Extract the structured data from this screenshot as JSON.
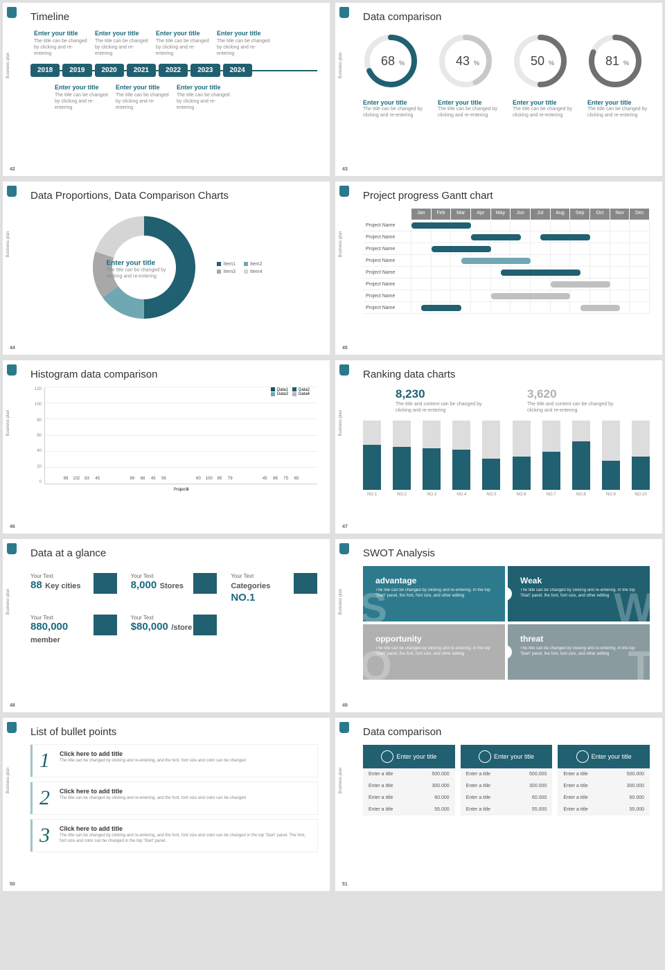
{
  "vlabel": "Business plan",
  "colors": {
    "primary": "#206070",
    "light": "#6fa8b3",
    "gray": "#a8a8a8",
    "lightgray": "#d5d5d5",
    "dark": "#2d5560"
  },
  "s42": {
    "num": "42",
    "title": "Timeline",
    "years": [
      "2018",
      "2019",
      "2020",
      "2021",
      "2022",
      "2023",
      "2024"
    ],
    "top": [
      {
        "t": "Enter your title",
        "d": "The title can be changed by clicking and re-entering"
      },
      {
        "t": "Enter your title",
        "d": "The title can be changed by clicking and re-entering"
      },
      {
        "t": "Enter your title",
        "d": "The title can be changed by clicking and re-entering"
      },
      {
        "t": "Enter your title",
        "d": "The title can be changed by clicking and re-entering"
      }
    ],
    "bot": [
      {
        "t": "Enter your title",
        "d": "The title can be changed by clicking and re-entering"
      },
      {
        "t": "Enter your title",
        "d": "The title can be changed by clicking and re-entering"
      },
      {
        "t": "Enter your title",
        "d": "The title can be changed by clicking and re-entering"
      }
    ]
  },
  "s43": {
    "num": "43",
    "title": "Data comparison",
    "gauges": [
      {
        "v": 68,
        "c": "#206070"
      },
      {
        "v": 43,
        "c": "#c8c8c8"
      },
      {
        "v": 50,
        "c": "#707070"
      },
      {
        "v": 81,
        "c": "#707070"
      }
    ],
    "sub": {
      "t": "Enter your title",
      "d": "The title can be changed by clicking and re-entering"
    }
  },
  "s44": {
    "num": "44",
    "title": "Data Proportions, Data Comparison Charts",
    "center": {
      "t": "Enter your title",
      "d": "The title can be changed by clicking and re-entering"
    },
    "slices": [
      {
        "l": "Item1",
        "c": "#206070",
        "v": 50
      },
      {
        "l": "Item2",
        "c": "#6fa8b3",
        "v": 15
      },
      {
        "l": "Item3",
        "c": "#a8a8a8",
        "v": 15
      },
      {
        "l": "Item4",
        "c": "#d5d5d5",
        "v": 20
      }
    ]
  },
  "s45": {
    "num": "45",
    "title": "Project progress Gantt chart",
    "months": [
      "Jan",
      "Feb",
      "Mar",
      "Apr",
      "May",
      "Jun",
      "Jul",
      "Aug",
      "Sep",
      "Oct",
      "Nov",
      "Dec"
    ],
    "rows": [
      {
        "l": "Project Name",
        "bars": [
          {
            "s": 0,
            "e": 3,
            "c": "#206070"
          }
        ]
      },
      {
        "l": "Project Name",
        "bars": [
          {
            "s": 3,
            "e": 5.5,
            "c": "#206070"
          },
          {
            "s": 6.5,
            "e": 9,
            "c": "#206070"
          }
        ]
      },
      {
        "l": "Project Name",
        "bars": [
          {
            "s": 1,
            "e": 4,
            "c": "#206070"
          }
        ]
      },
      {
        "l": "Project Name",
        "bars": [
          {
            "s": 2.5,
            "e": 6,
            "c": "#6fa8b3"
          }
        ]
      },
      {
        "l": "Project Name",
        "bars": [
          {
            "s": 4.5,
            "e": 8.5,
            "c": "#206070"
          }
        ]
      },
      {
        "l": "Project Name",
        "bars": [
          {
            "s": 7,
            "e": 10,
            "c": "#c0c0c0"
          }
        ]
      },
      {
        "l": "Project Name",
        "bars": [
          {
            "s": 4,
            "e": 8,
            "c": "#c0c0c0"
          }
        ]
      },
      {
        "l": "Project Name",
        "bars": [
          {
            "s": 0.5,
            "e": 2.5,
            "c": "#206070"
          },
          {
            "s": 8.5,
            "e": 10.5,
            "c": "#c0c0c0"
          }
        ]
      }
    ]
  },
  "s46": {
    "num": "46",
    "title": "Histogram data comparison",
    "ymax": 120,
    "ytick": 20,
    "legend": [
      "Data1",
      "Data2",
      "Data3",
      "Data4"
    ],
    "legcolors": [
      "#1a5260",
      "#206070",
      "#6fa8b3",
      "#b8b8b8"
    ],
    "groups": [
      {
        "l": "Project1",
        "v": [
          99,
          102,
          83,
          45
        ]
      },
      {
        "l": "Project2",
        "v": [
          99,
          68,
          45,
          56
        ]
      },
      {
        "l": "Project3",
        "v": [
          60,
          100,
          85,
          79
        ]
      },
      {
        "l": "Project4",
        "v": [
          45,
          86,
          75,
          65
        ]
      }
    ]
  },
  "s47": {
    "num": "47",
    "title": "Ranking data charts",
    "head": [
      {
        "n": "8,230",
        "c": "#206070",
        "d": "The title and content can be changed by clicking and re-entering"
      },
      {
        "n": "3,620",
        "c": "#b0b0b0",
        "d": "The title and content can be changed by clicking and re-entering"
      }
    ],
    "max": 100,
    "bars": [
      {
        "l": "NO.1",
        "t": 100,
        "f": 65
      },
      {
        "l": "NO.2",
        "t": 100,
        "f": 62
      },
      {
        "l": "NO.3",
        "t": 100,
        "f": 60
      },
      {
        "l": "NO.4",
        "t": 100,
        "f": 58
      },
      {
        "l": "NO.5",
        "t": 100,
        "f": 45
      },
      {
        "l": "NO.6",
        "t": 100,
        "f": 48
      },
      {
        "l": "NO.7",
        "t": 100,
        "f": 55
      },
      {
        "l": "NO.8",
        "t": 100,
        "f": 70
      },
      {
        "l": "NO.9",
        "t": 100,
        "f": 42
      },
      {
        "l": "NO.10",
        "t": 100,
        "f": 48
      }
    ]
  },
  "s48": {
    "num": "48",
    "title": "Data at a glance",
    "items": [
      {
        "s": "Your Text",
        "b": "88",
        "u": "Key cities"
      },
      {
        "s": "Your Text",
        "b": "8,000",
        "u": "Stores"
      },
      {
        "s": "Your Text",
        "b": "Categories",
        "u": "NO.1",
        "swap": true
      },
      {
        "s": "Your Text",
        "b": "880,000",
        "u": "member"
      },
      {
        "s": "Your Text",
        "b": "$80,000",
        "u": "/store"
      }
    ]
  },
  "s49": {
    "num": "49",
    "title": "SWOT Analysis",
    "cells": [
      {
        "h": "advantage",
        "l": "S",
        "c": "#2d7a8c",
        "d": "The title can be changed by clicking and re-entering. In the top 'Start' panel, the font, font size, and other editing"
      },
      {
        "h": "Weak",
        "l": "W",
        "c": "#206070",
        "d": "The title can be changed by clicking and re-entering. In the top 'Start' panel, the font, font size, and other editing"
      },
      {
        "h": "opportunity",
        "l": "O",
        "c": "#b0b0b0",
        "d": "The title can be changed by clicking and re-entering. In the top 'Start' panel, the font, font size, and other editing"
      },
      {
        "h": "threat",
        "l": "T",
        "c": "#8a9ba0",
        "d": "The title can be changed by clicking and re-entering. In the top 'Start' panel, the font, font size, and other editing"
      }
    ]
  },
  "s50": {
    "num": "50",
    "title": "List of bullet points",
    "items": [
      {
        "n": "1",
        "t": "Click here to add title",
        "d": "The title can be changed by clicking and re-entering, and the font, font size and color can be changed"
      },
      {
        "n": "2",
        "t": "Click here to add title",
        "d": "The title can be changed by clicking and re-entering, and the font, font size and color can be changed"
      },
      {
        "n": "3",
        "t": "Click here to add title",
        "d": "The title can be changed by clicking and re-entering, and the font, font size and color can be changed in the top 'Start' panel. The font, font size and color can be changed in the top 'Start' panel."
      }
    ]
  },
  "s51": {
    "num": "51",
    "title": "Data comparison",
    "head": "Enter your title",
    "cols": 3,
    "rows": [
      [
        "Enter a title",
        "500.000"
      ],
      [
        "Enter a title",
        "300.000"
      ],
      [
        "Enter a title",
        "60.000"
      ],
      [
        "Enter a title",
        "55.000"
      ]
    ]
  }
}
